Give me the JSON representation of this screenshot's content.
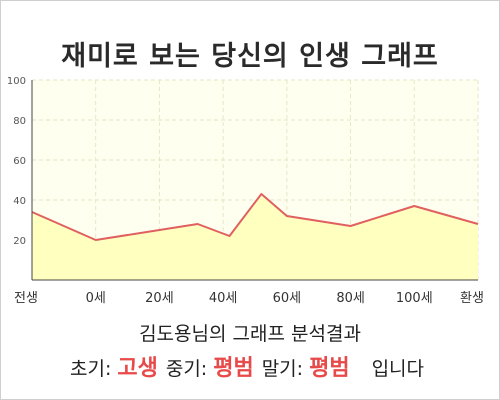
{
  "title": "재미로 보는 당신의 인생 그래프",
  "chart_data": {
    "type": "area",
    "x_tick_labels": [
      "전생",
      "0세",
      "20세",
      "40세",
      "60세",
      "80세",
      "100세",
      "환생"
    ],
    "y_ticks": [
      20,
      40,
      60,
      80,
      100
    ],
    "ylim": [
      0,
      100
    ],
    "grid": true,
    "series": [
      {
        "points": [
          {
            "x": -1.0,
            "y": 34
          },
          {
            "x": 0.0,
            "y": 20
          },
          {
            "x": 1.0,
            "y": 25
          },
          {
            "x": 1.6,
            "y": 28
          },
          {
            "x": 2.1,
            "y": 22
          },
          {
            "x": 2.6,
            "y": 43
          },
          {
            "x": 3.0,
            "y": 32
          },
          {
            "x": 4.0,
            "y": 27
          },
          {
            "x": 5.0,
            "y": 37
          },
          {
            "x": 6.2,
            "y": 28
          }
        ]
      }
    ],
    "colors": {
      "line": "#e06060",
      "fill": "#ffffc0",
      "plot_bg": "#fffff0",
      "grid": "#e6e6c8"
    }
  },
  "result": {
    "heading": "김도용님의 그래프 분석결과",
    "early_label": "초기:",
    "early_value": "고생",
    "middle_label": "중기:",
    "middle_value": "평범",
    "late_label": "말기:",
    "late_value": "평범",
    "suffix": "입니다",
    "value_color": "#e84a4a"
  }
}
